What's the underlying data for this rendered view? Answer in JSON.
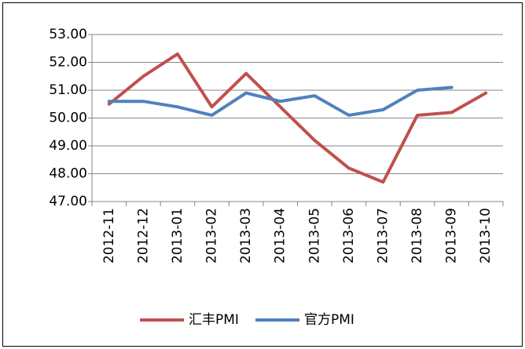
{
  "chart_data": {
    "type": "line",
    "categories": [
      "2012-11",
      "2012-12",
      "2013-01",
      "2013-02",
      "2013-03",
      "2013-04",
      "2013-05",
      "2013-06",
      "2013-07",
      "2013-08",
      "2013-09",
      "2013-10"
    ],
    "series": [
      {
        "name": "汇丰PMI",
        "color": "#c0504d",
        "values": [
          50.5,
          51.5,
          52.3,
          50.4,
          51.6,
          50.4,
          49.2,
          48.2,
          47.7,
          50.1,
          50.2,
          50.9
        ]
      },
      {
        "name": "官方PMI",
        "color": "#4f81bd",
        "values": [
          50.6,
          50.6,
          50.4,
          50.1,
          50.9,
          50.6,
          50.8,
          50.1,
          50.3,
          51.0,
          51.1,
          null
        ]
      }
    ],
    "ylim": [
      47,
      53
    ],
    "yticks": [
      {
        "value": 47,
        "label": "47.00"
      },
      {
        "value": 48,
        "label": "48.00"
      },
      {
        "value": 49,
        "label": "49.00"
      },
      {
        "value": 50,
        "label": "50.00"
      },
      {
        "value": 51,
        "label": "51.00"
      },
      {
        "value": 52,
        "label": "52.00"
      },
      {
        "value": 53,
        "label": "53.00"
      }
    ],
    "grid": true,
    "legend": "bottom"
  }
}
